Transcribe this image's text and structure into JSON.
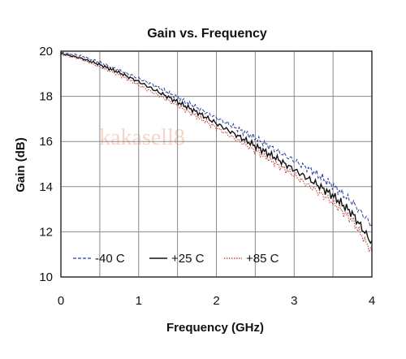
{
  "chart_data": {
    "type": "line",
    "title": "Gain vs. Frequency",
    "xlabel": "Frequency (GHz)",
    "ylabel": "Gain (dB)",
    "xlim": [
      0,
      4
    ],
    "ylim": [
      10,
      20
    ],
    "x_ticks": [
      "0",
      "1",
      "2",
      "3",
      "4"
    ],
    "y_ticks": [
      "10",
      "12",
      "14",
      "16",
      "18",
      "20"
    ],
    "grid": true,
    "legend_position": "bottom-left",
    "watermark": "kakasell8",
    "series": [
      {
        "name": "-40 C",
        "style": "dashed",
        "color": "#2b3f9e",
        "x": [
          0,
          0.25,
          0.5,
          0.75,
          1.0,
          1.25,
          1.5,
          1.75,
          2.0,
          2.25,
          2.5,
          2.75,
          3.0,
          3.25,
          3.5,
          3.75,
          4.0
        ],
        "y": [
          19.95,
          19.8,
          19.5,
          19.15,
          18.8,
          18.4,
          17.95,
          17.5,
          17.05,
          16.6,
          16.15,
          15.65,
          15.15,
          14.65,
          14.05,
          13.3,
          12.3
        ]
      },
      {
        "name": "+25 C",
        "style": "solid",
        "color": "#111111",
        "x": [
          0,
          0.25,
          0.5,
          0.75,
          1.0,
          1.25,
          1.5,
          1.75,
          2.0,
          2.25,
          2.5,
          2.75,
          3.0,
          3.25,
          3.5,
          3.75,
          4.0
        ],
        "y": [
          19.9,
          19.7,
          19.4,
          19.05,
          18.65,
          18.2,
          17.75,
          17.3,
          16.8,
          16.3,
          15.8,
          15.3,
          14.75,
          14.2,
          13.6,
          12.8,
          11.5
        ]
      },
      {
        "name": "+85 C",
        "style": "dotted",
        "color": "#c0392b",
        "x": [
          0,
          0.25,
          0.5,
          0.75,
          1.0,
          1.25,
          1.5,
          1.75,
          2.0,
          2.25,
          2.5,
          2.75,
          3.0,
          3.25,
          3.5,
          3.75,
          4.0
        ],
        "y": [
          19.85,
          19.65,
          19.3,
          18.95,
          18.5,
          18.05,
          17.6,
          17.1,
          16.6,
          16.1,
          15.6,
          15.05,
          14.5,
          13.9,
          13.3,
          12.5,
          11.1
        ]
      }
    ]
  }
}
